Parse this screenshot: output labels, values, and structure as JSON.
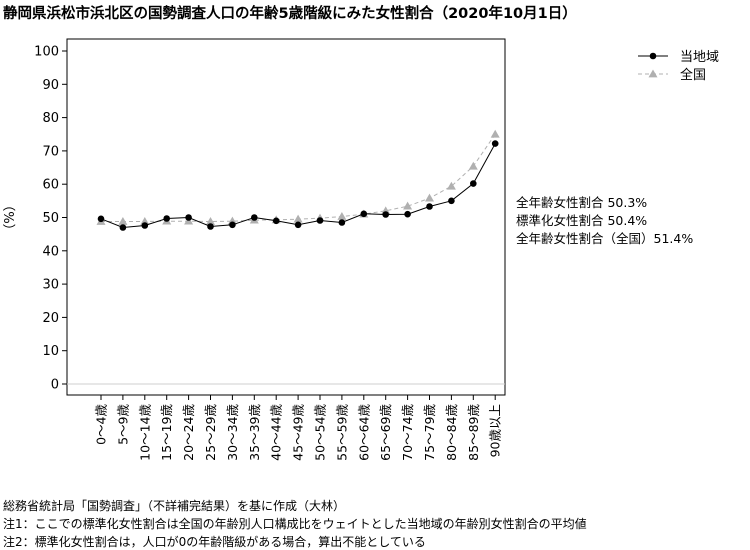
{
  "title": "静岡県浜松市浜北区の国勢調査人口の年齢5歳階級にみた女性割合（2020年10月1日）",
  "chart_data": {
    "type": "line",
    "categories": [
      "0～4歳",
      "5～9歳",
      "10～14歳",
      "15～19歳",
      "20～24歳",
      "25～29歳",
      "30～34歳",
      "35～39歳",
      "40～44歳",
      "45～49歳",
      "50～54歳",
      "55～59歳",
      "60～64歳",
      "65～69歳",
      "70～74歳",
      "75～79歳",
      "80～84歳",
      "85～89歳",
      "90歳以上"
    ],
    "series": [
      {
        "name": "当地域",
        "color": "#000000",
        "marker": "circle",
        "line_style": "solid",
        "values": [
          49.6,
          47.0,
          47.6,
          49.7,
          50.0,
          47.3,
          47.8,
          50.0,
          49.0,
          47.8,
          49.1,
          48.5,
          51.1,
          50.9,
          51.0,
          53.3,
          55.0,
          60.2,
          72.2
        ]
      },
      {
        "name": "全国",
        "color": "#b0b0b0",
        "marker": "triangle",
        "line_style": "dashed",
        "values": [
          48.8,
          48.8,
          48.8,
          48.9,
          48.9,
          48.8,
          48.9,
          49.2,
          49.3,
          49.5,
          49.8,
          50.3,
          51.0,
          52.0,
          53.4,
          55.8,
          59.4,
          65.4,
          75.0
        ]
      }
    ],
    "ylabel": "（%）",
    "ylim": [
      0,
      100
    ],
    "yticks": [
      "0",
      "10",
      "20",
      "30",
      "40",
      "50",
      "60",
      "70",
      "80",
      "90",
      "100"
    ],
    "grid": false,
    "legend_position": "top-right"
  },
  "annotations": [
    "全年齢女性割合 50.3%",
    "標準化女性割合 50.4%",
    "全年齢女性割合（全国）51.4%"
  ],
  "footnotes": {
    "source": "総務省統計局「国勢調査」（不詳補完結果）を基に作成（大林）",
    "note1": "注1：ここでの標準化女性割合は全国の年齢別人口構成比をウェイトとした当地域の年齢別女性割合の平均値",
    "note2": "注2：標準化女性割合は，人口が0の年齢階級がある場合，算出不能としている"
  }
}
